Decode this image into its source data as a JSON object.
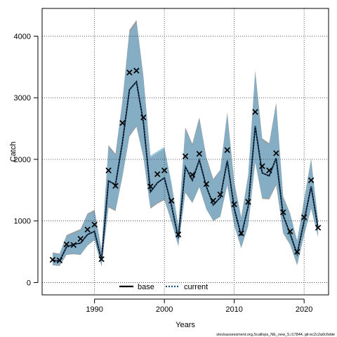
{
  "chart_data": {
    "type": "line",
    "xlabel": "Years",
    "ylabel": "Catch",
    "xlim": [
      1982.5,
      2023.5
    ],
    "ylim": [
      -200,
      4450
    ],
    "x_ticks": [
      1990,
      2000,
      2010,
      2020
    ],
    "y_ticks": [
      0,
      1000,
      2000,
      3000,
      4000
    ],
    "grid": true,
    "legend_placement": "bottom-center",
    "x": [
      1984,
      1985,
      1986,
      1987,
      1988,
      1989,
      1990,
      1991,
      1992,
      1993,
      1994,
      1995,
      1996,
      1997,
      1998,
      1999,
      2000,
      2001,
      2002,
      2003,
      2004,
      2005,
      2006,
      2007,
      2008,
      2009,
      2010,
      2011,
      2012,
      2013,
      2014,
      2015,
      2016,
      2017,
      2018,
      2019,
      2020,
      2021,
      2022
    ],
    "observed": {
      "name": "",
      "marker": "x",
      "values": [
        370,
        360,
        620,
        610,
        710,
        860,
        940,
        380,
        1820,
        1570,
        2590,
        3410,
        3440,
        2680,
        1560,
        1760,
        1820,
        1330,
        780,
        2050,
        1750,
        2090,
        1600,
        1330,
        1430,
        2150,
        1270,
        800,
        1310,
        2770,
        1890,
        1820,
        2100,
        1140,
        830,
        500,
        1060,
        1660,
        890
      ]
    },
    "series": [
      {
        "name": "base",
        "color": "#000000",
        "line_style": "solid",
        "values": [
          360,
          350,
          580,
          620,
          640,
          780,
          830,
          360,
          1650,
          1590,
          2280,
          3130,
          3260,
          2600,
          1470,
          1620,
          1700,
          1260,
          720,
          1880,
          1660,
          1990,
          1560,
          1260,
          1380,
          1980,
          1200,
          760,
          1240,
          2540,
          1780,
          1730,
          2020,
          1090,
          790,
          460,
          1000,
          1560,
          880
        ]
      },
      {
        "name": "current",
        "color": "#1f4e79",
        "line_style": "dotted",
        "values": [
          360,
          350,
          580,
          620,
          640,
          780,
          830,
          360,
          1650,
          1590,
          2280,
          3130,
          3260,
          2600,
          1470,
          1620,
          1700,
          1260,
          720,
          1880,
          1660,
          1990,
          1560,
          1260,
          1380,
          1980,
          1200,
          760,
          1240,
          2540,
          1780,
          1730,
          2020,
          1090,
          790,
          460,
          1000,
          1560,
          880
        ]
      }
    ],
    "ribbons": [
      {
        "of": "base",
        "color": "#8a8a8a",
        "lower": [
          280,
          270,
          450,
          460,
          450,
          600,
          690,
          260,
          1220,
          1160,
          1720,
          2370,
          2530,
          2030,
          1200,
          1280,
          1340,
          990,
          590,
          1460,
          1290,
          1550,
          1190,
          1000,
          1070,
          1580,
          920,
          560,
          920,
          1950,
          1360,
          1350,
          1580,
          800,
          610,
          280,
          770,
          1200,
          740
        ],
        "upper": [
          490,
          470,
          770,
          820,
          870,
          1120,
          1180,
          540,
          2230,
          2090,
          2960,
          4100,
          4260,
          3350,
          2030,
          2100,
          2170,
          1610,
          920,
          2520,
          2250,
          2680,
          2040,
          1680,
          1830,
          2760,
          1630,
          1060,
          1750,
          3440,
          2340,
          2260,
          2920,
          1400,
          1120,
          680,
          1350,
          2010,
          1010
        ]
      },
      {
        "of": "current",
        "color": "#7eb3d1",
        "lower": [
          290,
          280,
          460,
          470,
          460,
          610,
          700,
          270,
          1240,
          1180,
          1740,
          2390,
          2550,
          2050,
          1220,
          1300,
          1360,
          1000,
          600,
          1480,
          1300,
          1570,
          1200,
          1010,
          1080,
          1600,
          930,
          570,
          930,
          1970,
          1380,
          1370,
          1600,
          810,
          620,
          290,
          780,
          1210,
          750
        ],
        "upper": [
          470,
          460,
          750,
          800,
          850,
          1100,
          1160,
          530,
          2200,
          2060,
          2930,
          4050,
          4220,
          3310,
          2060,
          2130,
          2200,
          1630,
          910,
          2490,
          2220,
          2650,
          2020,
          1660,
          1810,
          2730,
          1610,
          1050,
          1730,
          3400,
          2310,
          2230,
          2890,
          1380,
          1110,
          670,
          1330,
          1990,
          1000
        ]
      }
    ],
    "annotation": "stockassessment.org,Scallops_NE_new_5,r17844, git:ec2c2a0c6dde"
  }
}
